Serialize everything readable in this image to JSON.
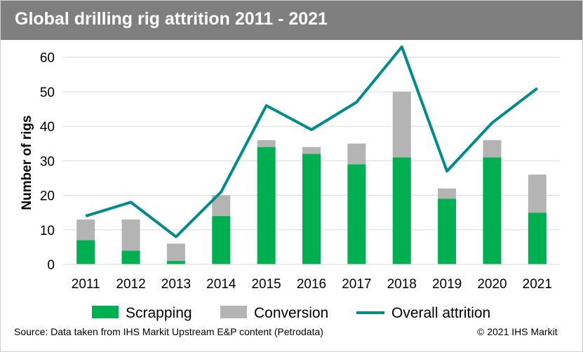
{
  "title": "Global drilling rig attrition 2011 - 2021",
  "source": "Source: Data taken from IHS Markit Upstream E&P content (Petrodata)",
  "copyright": "© 2021 IHS Markit",
  "colors": {
    "scrapping": "#00b050",
    "conversion": "#b4b4b4",
    "overall": "#008b8b",
    "title_bg": "#7f7f7f"
  },
  "chart_data": {
    "type": "bar",
    "stacked": true,
    "title": "Global drilling rig attrition 2011 - 2021",
    "ylabel": "Number of rigs",
    "xlabel": "",
    "ylim": [
      0,
      65
    ],
    "yticks": [
      0,
      10,
      20,
      30,
      40,
      50,
      60
    ],
    "grid": true,
    "legend_position": "bottom",
    "categories": [
      "2011",
      "2012",
      "2013",
      "2014",
      "2015",
      "2016",
      "2017",
      "2018",
      "2019",
      "2020",
      "2021"
    ],
    "series": [
      {
        "name": "Scrapping",
        "type": "bar",
        "values": [
          7,
          4,
          1,
          14,
          34,
          32,
          29,
          31,
          19,
          31,
          15
        ]
      },
      {
        "name": "Conversion",
        "type": "bar",
        "values": [
          6,
          9,
          5,
          6,
          2,
          2,
          6,
          19,
          3,
          5,
          11
        ]
      },
      {
        "name": "Overall attrition",
        "type": "line",
        "values": [
          14,
          18,
          8,
          21,
          46,
          39,
          47,
          63,
          27,
          41,
          51
        ]
      }
    ]
  }
}
